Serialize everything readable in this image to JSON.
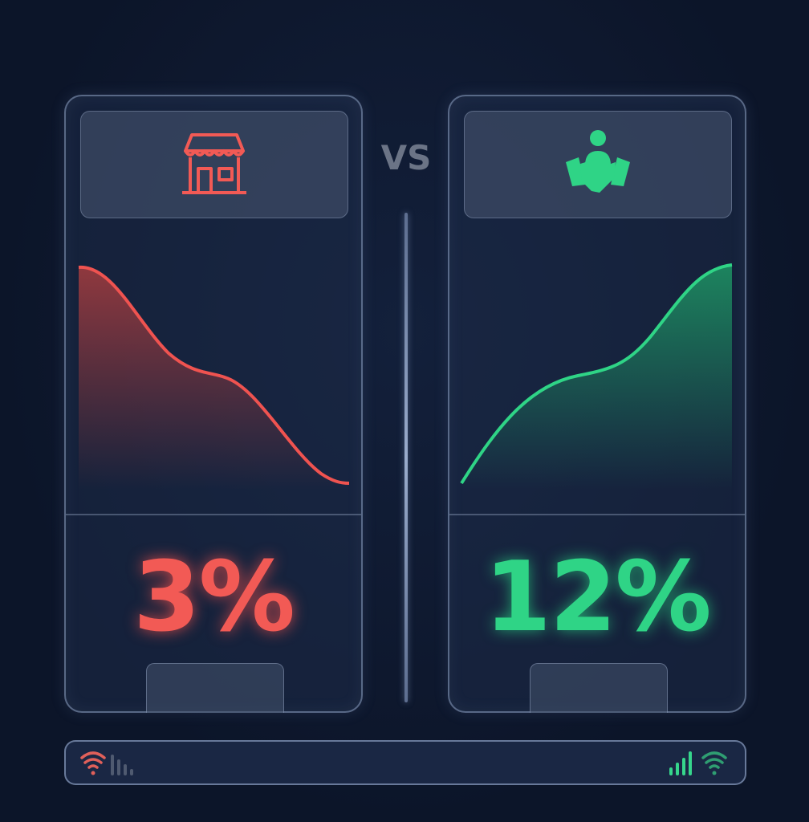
{
  "vs_label": "VS",
  "left": {
    "icon": "storefront-icon",
    "percent": "3%",
    "color": "#f25a55",
    "trend": "down"
  },
  "right": {
    "icon": "handshake-person-icon",
    "percent": "12%",
    "color": "#2fd486",
    "trend": "up"
  },
  "status_bar": {
    "left_icons": [
      "wifi-icon",
      "signal-bars-icon"
    ],
    "right_icons": [
      "signal-bars-icon",
      "wifi-icon"
    ]
  }
}
